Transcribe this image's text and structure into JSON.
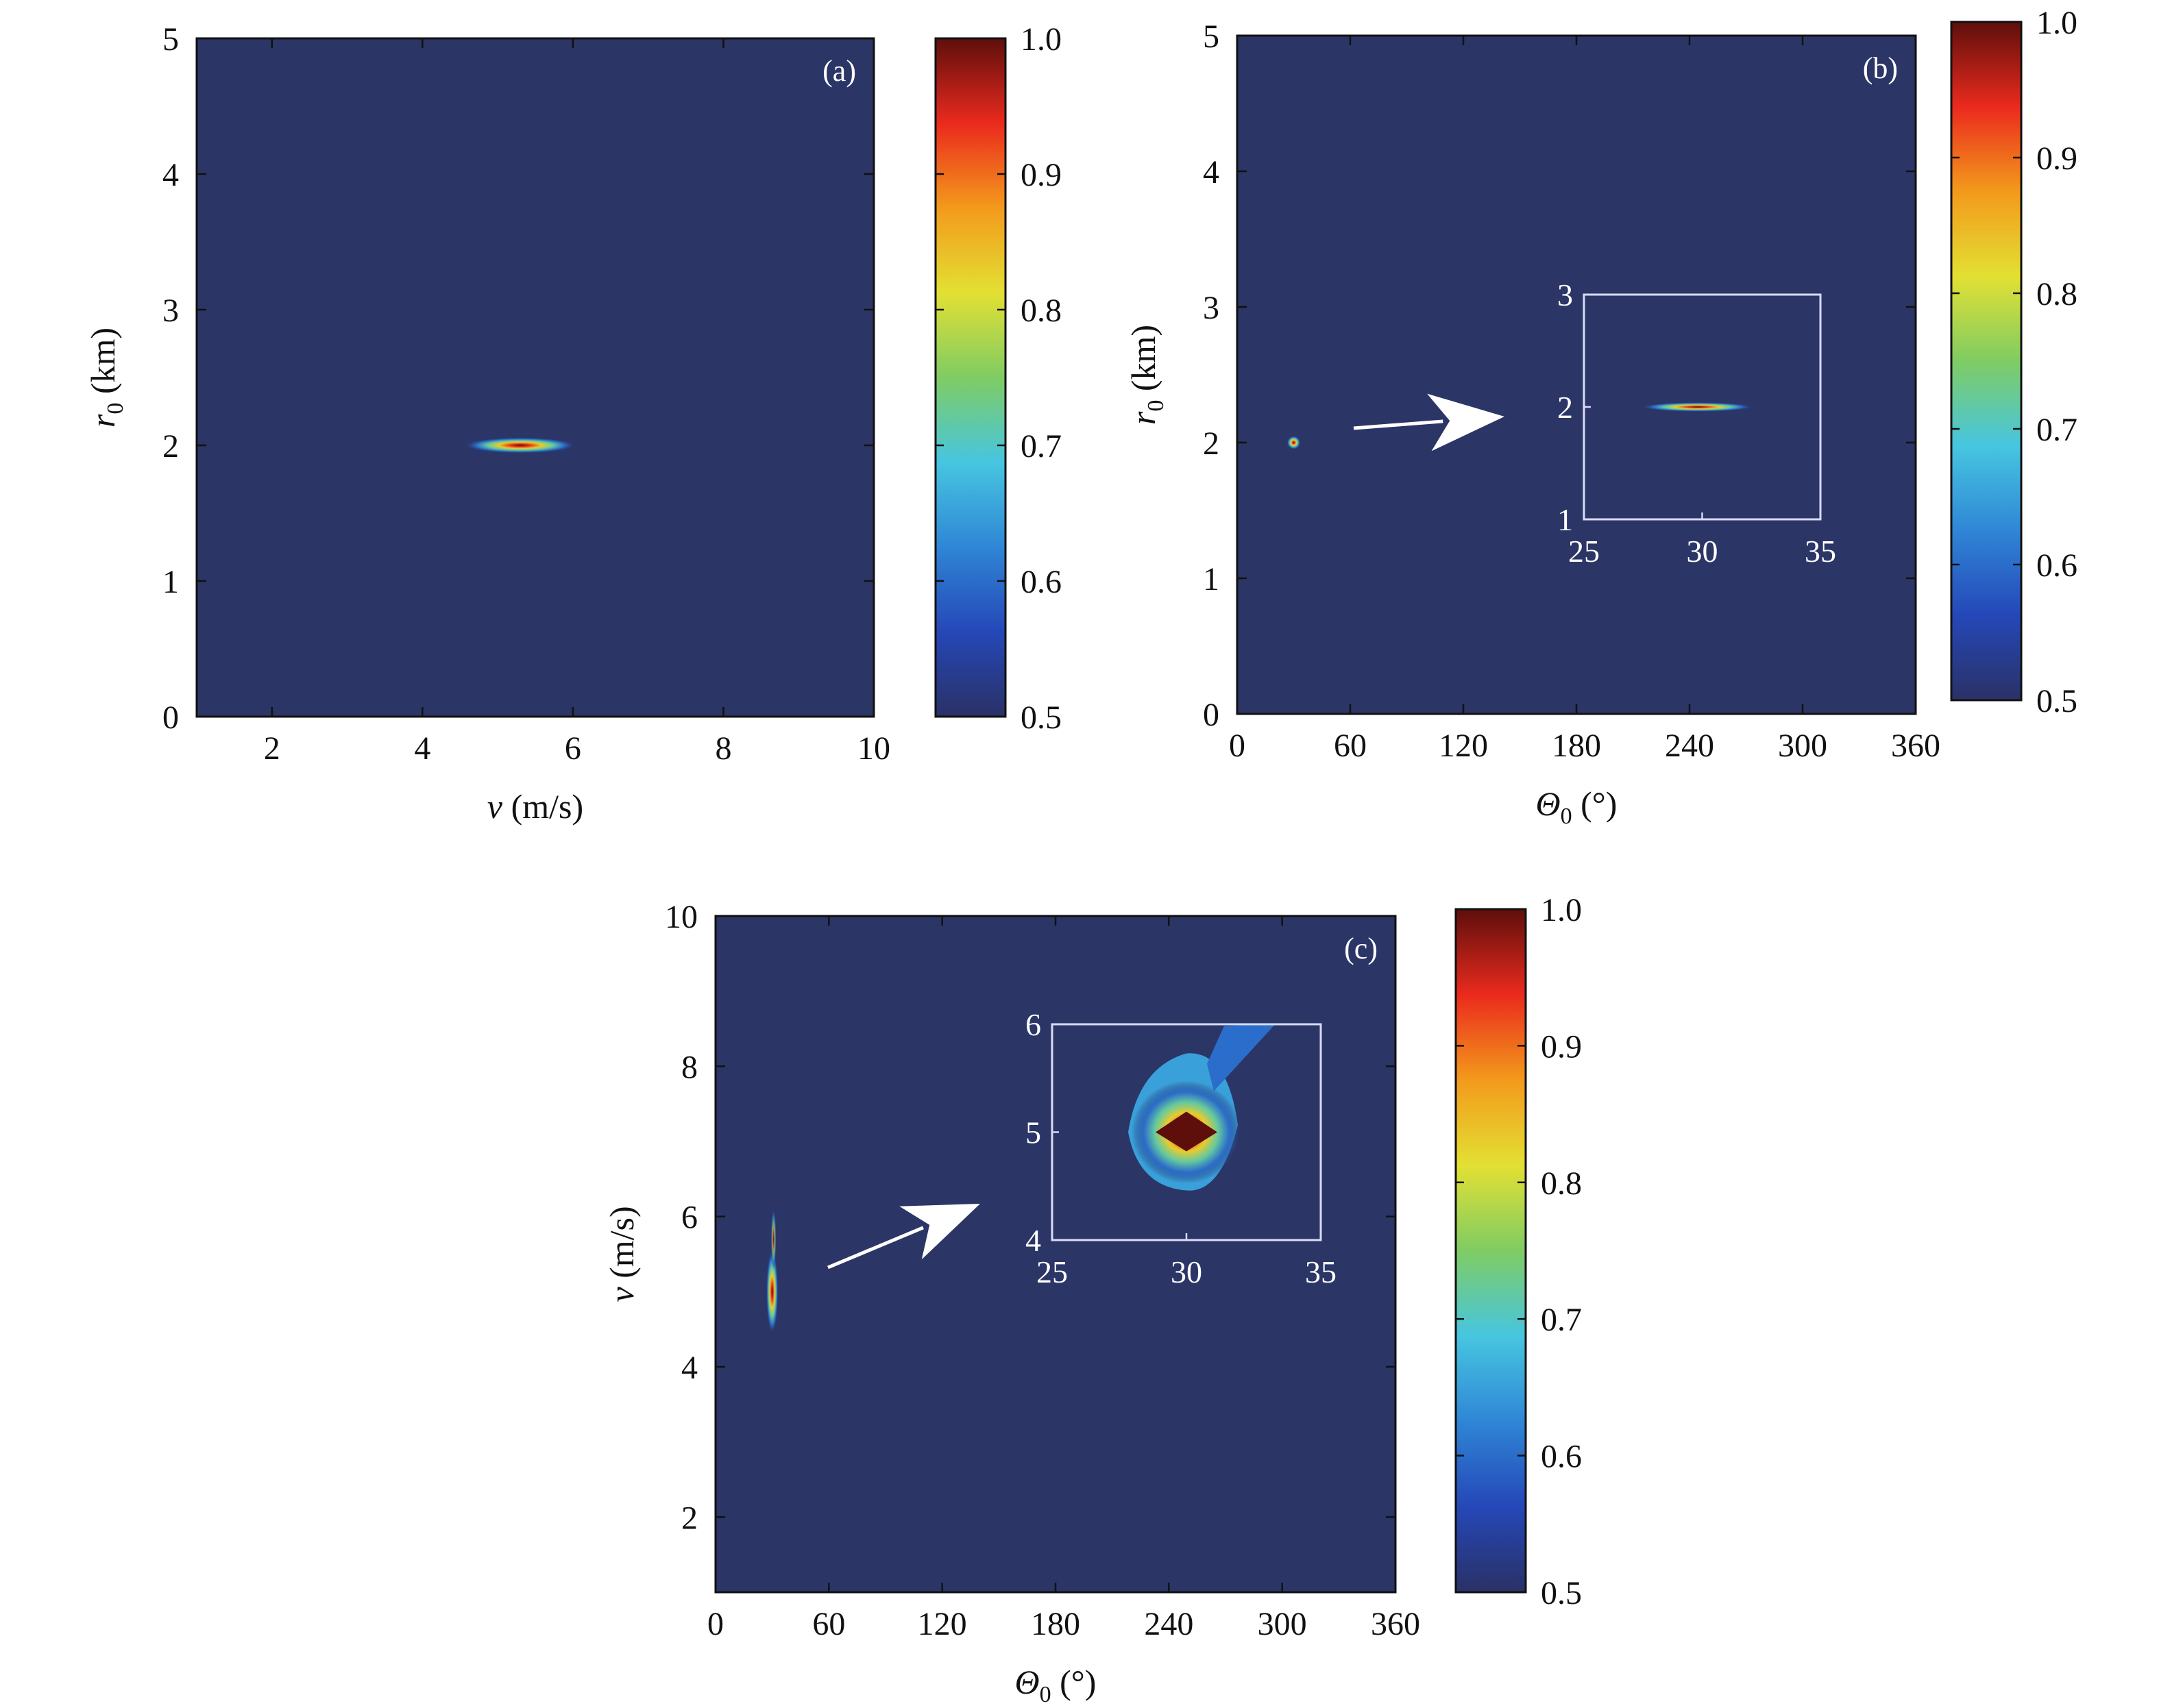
{
  "colors": {
    "background": "#2b3566",
    "inset_frame": "#d8dcf5",
    "arrow": "#ffffff",
    "colormap": [
      "#2a3165",
      "#2547b8",
      "#2f86d6",
      "#47c6e0",
      "#7fcc63",
      "#e3e033",
      "#f39a1c",
      "#ea2a1d",
      "#5e0f0c"
    ]
  },
  "colormap": "jet",
  "chart_data": [
    {
      "id": "a",
      "type": "heatmap",
      "panel_label": "(a)",
      "x_axis": {
        "label_var": "v",
        "label_unit": " (m/s)",
        "ticks": [
          "2",
          "4",
          "6",
          "8",
          "10"
        ],
        "tick_values": [
          2,
          4,
          6,
          8,
          10
        ],
        "range": [
          1,
          10
        ]
      },
      "y_axis": {
        "label_var": "r",
        "label_sub": "0",
        "label_unit": " (km)",
        "ticks": [
          "0",
          "1",
          "2",
          "3",
          "4",
          "5"
        ],
        "tick_values": [
          0,
          1,
          2,
          3,
          4,
          5
        ],
        "range": [
          0,
          5
        ]
      },
      "colorbar": {
        "ticks": [
          "0.5",
          "0.6",
          "0.7",
          "0.8",
          "0.9",
          "1.0"
        ],
        "range": [
          0.5,
          1.0
        ]
      },
      "peak": {
        "x": 5.3,
        "y": 2.0,
        "value": 1.0,
        "spread_x": 0.75,
        "spread_y": 0.06
      }
    },
    {
      "id": "b",
      "type": "heatmap",
      "panel_label": "(b)",
      "x_axis": {
        "label_var": "Θ",
        "label_sub": "0",
        "label_unit": " (°)",
        "ticks": [
          "0",
          "60",
          "120",
          "180",
          "240",
          "300",
          "360"
        ],
        "tick_values": [
          0,
          60,
          120,
          180,
          240,
          300,
          360
        ],
        "range": [
          0,
          360
        ]
      },
      "y_axis": {
        "label_var": "r",
        "label_sub": "0",
        "label_unit": " (km)",
        "ticks": [
          "0",
          "1",
          "2",
          "3",
          "4",
          "5"
        ],
        "tick_values": [
          0,
          1,
          2,
          3,
          4,
          5
        ],
        "range": [
          0,
          5
        ]
      },
      "colorbar": {
        "ticks": [
          "0.5",
          "0.6",
          "0.7",
          "0.8",
          "0.9",
          "1.0"
        ],
        "range": [
          0.5,
          1.0
        ]
      },
      "peak": {
        "x": 30,
        "y": 2.0,
        "value": 1.0
      },
      "inset": {
        "x_ticks": [
          "25",
          "30",
          "35"
        ],
        "x_tick_values": [
          25,
          30,
          35
        ],
        "x_range": [
          25,
          35
        ],
        "y_ticks": [
          "1",
          "2",
          "3"
        ],
        "y_tick_values": [
          1,
          2,
          3
        ],
        "y_range": [
          1,
          3
        ],
        "peak": {
          "x": 29.8,
          "y": 2.0,
          "spread_x": 2.4,
          "spread_y": 0.05
        }
      }
    },
    {
      "id": "c",
      "type": "heatmap",
      "panel_label": "(c)",
      "x_axis": {
        "label_var": "Θ",
        "label_sub": "0",
        "label_unit": " (°)",
        "ticks": [
          "0",
          "60",
          "120",
          "180",
          "240",
          "300",
          "360"
        ],
        "tick_values": [
          0,
          60,
          120,
          180,
          240,
          300,
          360
        ],
        "range": [
          0,
          360
        ]
      },
      "y_axis": {
        "label_var": "v",
        "label_unit": " (m/s)",
        "ticks": [
          "2",
          "4",
          "6",
          "8",
          "10"
        ],
        "tick_values": [
          2,
          4,
          6,
          8,
          10
        ],
        "range": [
          1,
          10
        ]
      },
      "colorbar": {
        "ticks": [
          "0.5",
          "0.6",
          "0.7",
          "0.8",
          "0.9",
          "1.0"
        ],
        "range": [
          0.5,
          1.0
        ]
      },
      "peak": {
        "x": 30,
        "y": 5.0,
        "value": 1.0
      },
      "inset": {
        "x_ticks": [
          "25",
          "30",
          "35"
        ],
        "x_tick_values": [
          25,
          30,
          35
        ],
        "x_range": [
          25,
          35
        ],
        "y_ticks": [
          "4",
          "5",
          "6"
        ],
        "y_tick_values": [
          4,
          5,
          6
        ],
        "y_range": [
          4,
          6
        ],
        "peak": {
          "x": 30.0,
          "y": 5.0,
          "spread_x": 1.5,
          "spread_y": 0.28
        }
      }
    }
  ]
}
